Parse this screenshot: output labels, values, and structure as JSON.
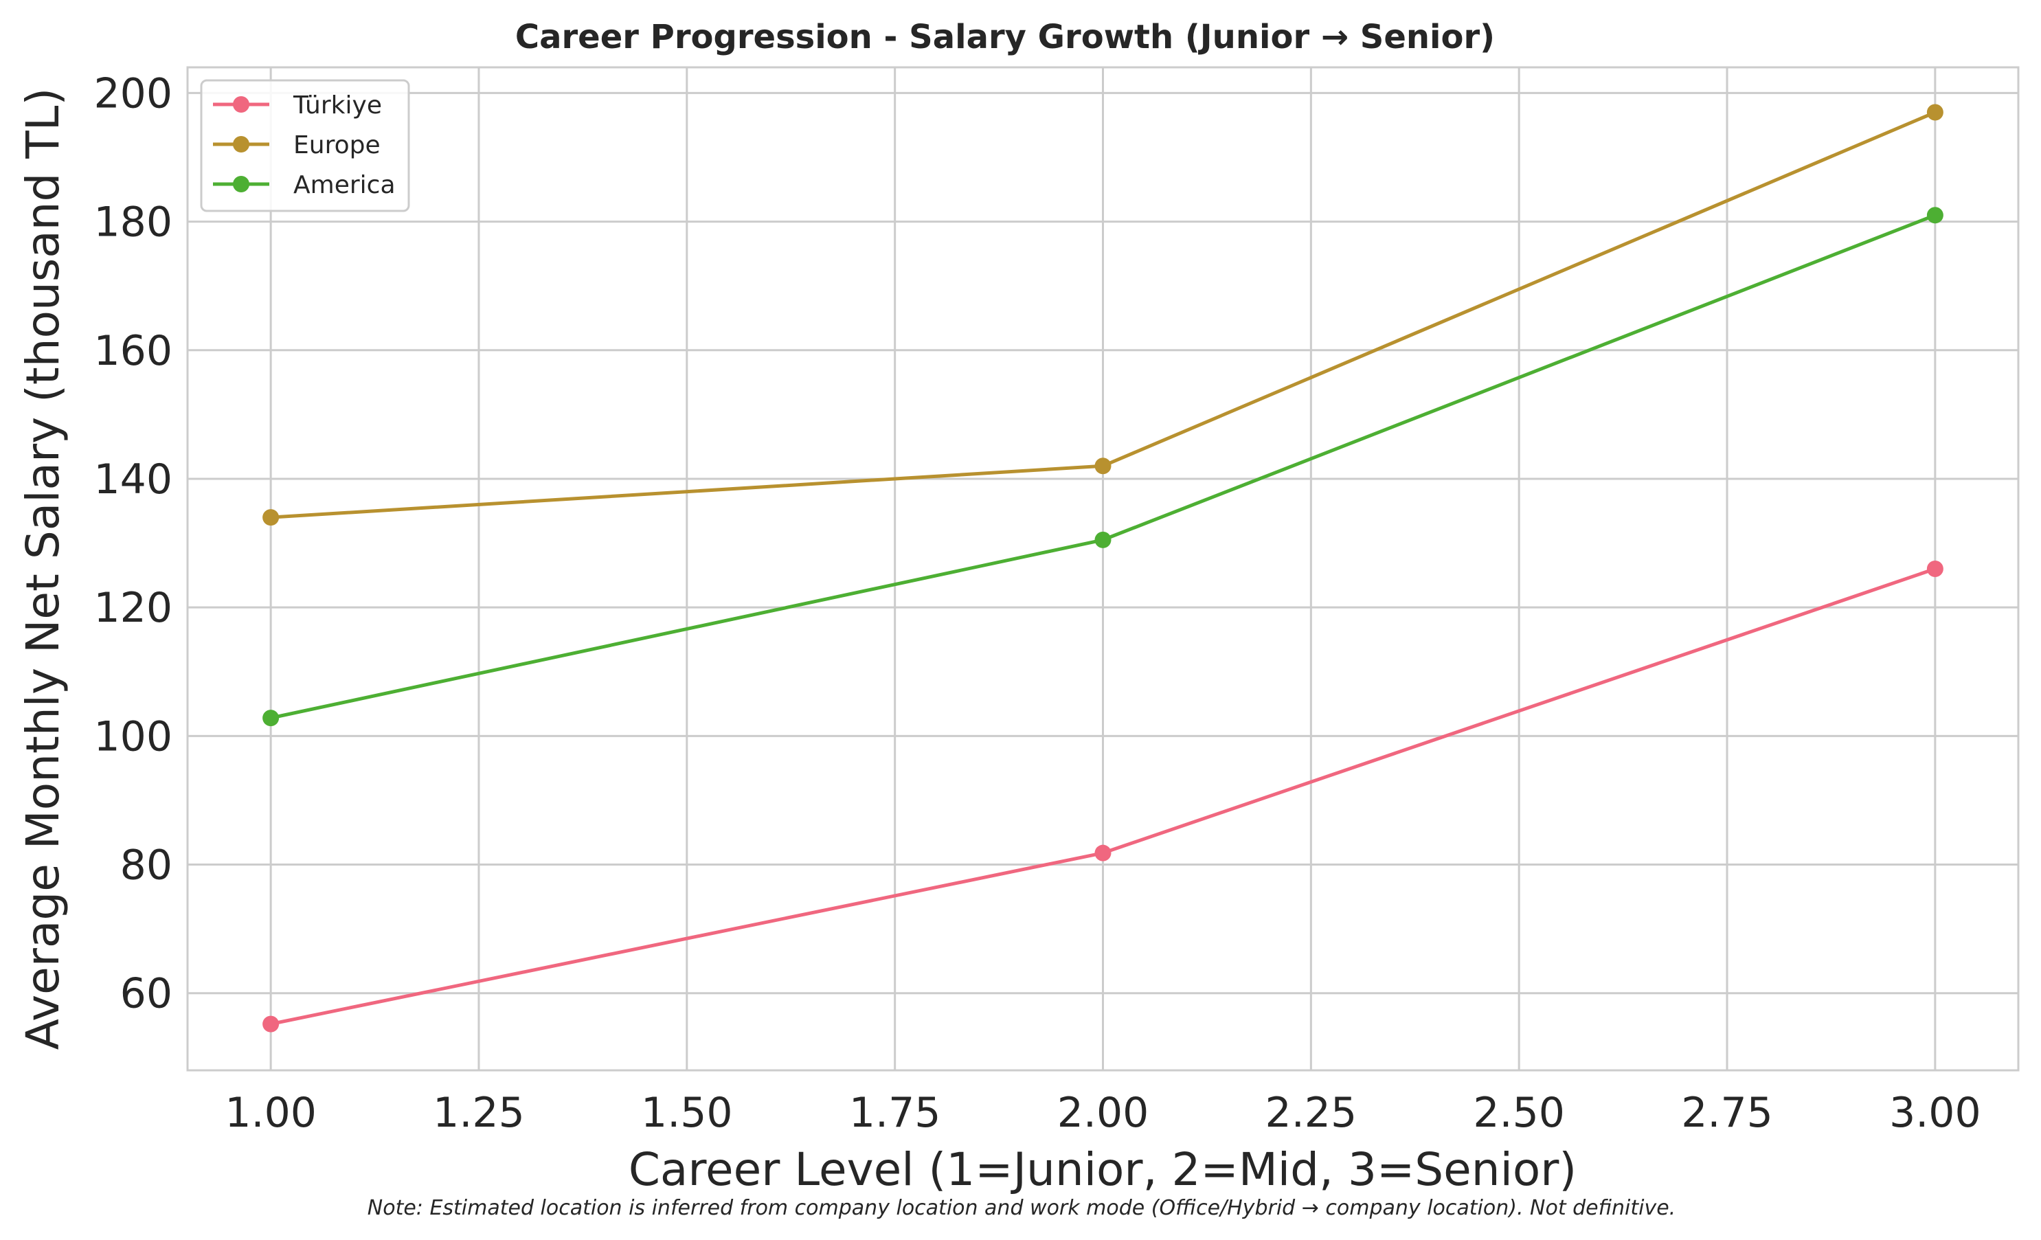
{
  "chart_data": {
    "type": "line",
    "title": "Career Progression - Salary Growth (Junior → Senior)",
    "xlabel": "Career Level (1=Junior, 2=Mid, 3=Senior)",
    "ylabel": "Average Monthly Net Salary (thousand TL)",
    "xlim": [
      0.9,
      3.1
    ],
    "ylim": [
      48,
      204
    ],
    "x_ticks": [
      1.0,
      1.25,
      1.5,
      1.75,
      2.0,
      2.25,
      2.5,
      2.75,
      3.0
    ],
    "x_tick_labels": [
      "1.00",
      "1.25",
      "1.50",
      "1.75",
      "2.00",
      "2.25",
      "2.50",
      "2.75",
      "3.00"
    ],
    "y_ticks": [
      60,
      80,
      100,
      120,
      140,
      160,
      180,
      200
    ],
    "y_tick_labels": [
      "60",
      "80",
      "100",
      "120",
      "140",
      "160",
      "180",
      "200"
    ],
    "grid": true,
    "legend_position": "top-left",
    "x": [
      1,
      2,
      3
    ],
    "series": [
      {
        "name": "Türkiye",
        "color": "#f0677f",
        "values": [
          55.2,
          81.8,
          126.0
        ]
      },
      {
        "name": "Europe",
        "color": "#b8912f",
        "values": [
          134.0,
          142.0,
          197.0
        ]
      },
      {
        "name": "America",
        "color": "#4daf33",
        "values": [
          102.8,
          130.5,
          181.0
        ]
      }
    ],
    "note": "Note: Estimated location is inferred from company location and work mode (Office/Hybrid → company location). Not definitive."
  }
}
